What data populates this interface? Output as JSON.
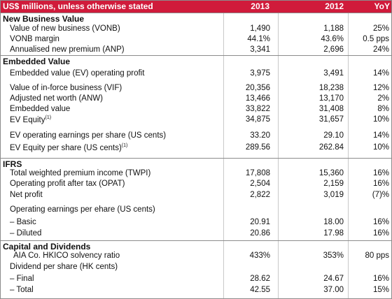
{
  "header": {
    "label": "US$ millions, unless otherwise stated",
    "col_2013": "2013",
    "col_2012": "2012",
    "col_yoy": "YoY"
  },
  "sections": {
    "nbv": {
      "title": "New Business Value",
      "rows": [
        {
          "label": "Value of new business (VONB)",
          "v2013": "1,490",
          "v2012": "1,188",
          "yoy": "25%"
        },
        {
          "label": "VONB margin",
          "v2013": "44.1%",
          "v2012": "43.6%",
          "yoy": "0.5 pps"
        },
        {
          "label": "Annualised new premium (ANP)",
          "v2013": "3,341",
          "v2012": "2,696",
          "yoy": "24%"
        }
      ]
    },
    "ev": {
      "title": "Embedded Value",
      "rows": [
        {
          "label": "Embedded value (EV) operating profit",
          "v2013": "3,975",
          "v2012": "3,491",
          "yoy": "14%"
        },
        {
          "label": "Value of in-force business (VIF)",
          "v2013": "20,356",
          "v2012": "18,238",
          "yoy": "12%"
        },
        {
          "label": "Adjusted net worth (ANW)",
          "v2013": "13,466",
          "v2012": "13,170",
          "yoy": "2%"
        },
        {
          "label": "Embedded value",
          "v2013": "33,822",
          "v2012": "31,408",
          "yoy": "8%"
        },
        {
          "label": "EV Equity",
          "sup": "(1)",
          "v2013": "34,875",
          "v2012": "31,657",
          "yoy": "10%"
        },
        {
          "label": "EV operating earnings per share (US cents)",
          "v2013": "33.20",
          "v2012": "29.10",
          "yoy": "14%"
        },
        {
          "label": "EV Equity per share (US cents)",
          "sup": "(1)",
          "v2013": "289.56",
          "v2012": "262.84",
          "yoy": "10%"
        }
      ]
    },
    "ifrs": {
      "title": "IFRS",
      "rows": [
        {
          "label": "Total weighted premium income (TWPI)",
          "v2013": "17,808",
          "v2012": "15,360",
          "yoy": "16%"
        },
        {
          "label": "Operating profit after tax (OPAT)",
          "v2013": "2,504",
          "v2012": "2,159",
          "yoy": "16%"
        },
        {
          "label": "Net profit",
          "v2013": "2,822",
          "v2012": "3,019",
          "yoy": "(7)%"
        },
        {
          "label": "Operating earnings per ehare (US cents)",
          "v2013": "",
          "v2012": "",
          "yoy": ""
        },
        {
          "label": "– Basic",
          "v2013": "20.91",
          "v2012": "18.00",
          "yoy": "16%"
        },
        {
          "label": "– Diluted",
          "v2013": "20.86",
          "v2012": "17.98",
          "yoy": "16%"
        }
      ]
    },
    "cap": {
      "title": "Capital and Dividends",
      "rows": [
        {
          "label": "AIA Co. HKICO solvency ratio",
          "v2013": "433%",
          "v2012": "353%",
          "yoy": "80 pps"
        },
        {
          "label": "Dividend per share (HK cents)",
          "v2013": "",
          "v2012": "",
          "yoy": ""
        },
        {
          "label": "– Final",
          "v2013": "28.62",
          "v2012": "24.67",
          "yoy": "16%"
        },
        {
          "label": "– Total",
          "v2013": "42.55",
          "v2012": "37.00",
          "yoy": "15%"
        }
      ]
    }
  }
}
